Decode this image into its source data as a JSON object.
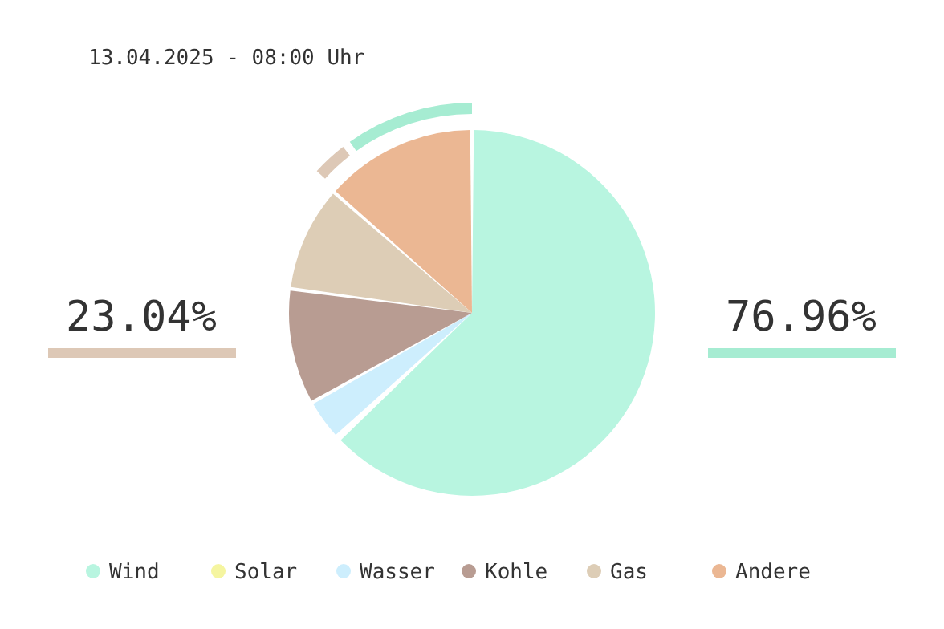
{
  "chart_data": {
    "type": "pie",
    "title": "13.04.2025 - 08:00 Uhr",
    "legend": "bottom",
    "categories": [
      "Wind",
      "Solar",
      "Wasser",
      "Kohle",
      "Gas",
      "Andere"
    ],
    "values": [
      63.8,
      0,
      3.4,
      10.1,
      9.2,
      13.5
    ],
    "colors": [
      "#b8f5e0",
      "#f5f5a0",
      "#cdeefd",
      "#b89c92",
      "#ddcdb6",
      "#ebb793"
    ],
    "annotations": [
      "76.96%",
      "23.04%"
    ]
  }
}
